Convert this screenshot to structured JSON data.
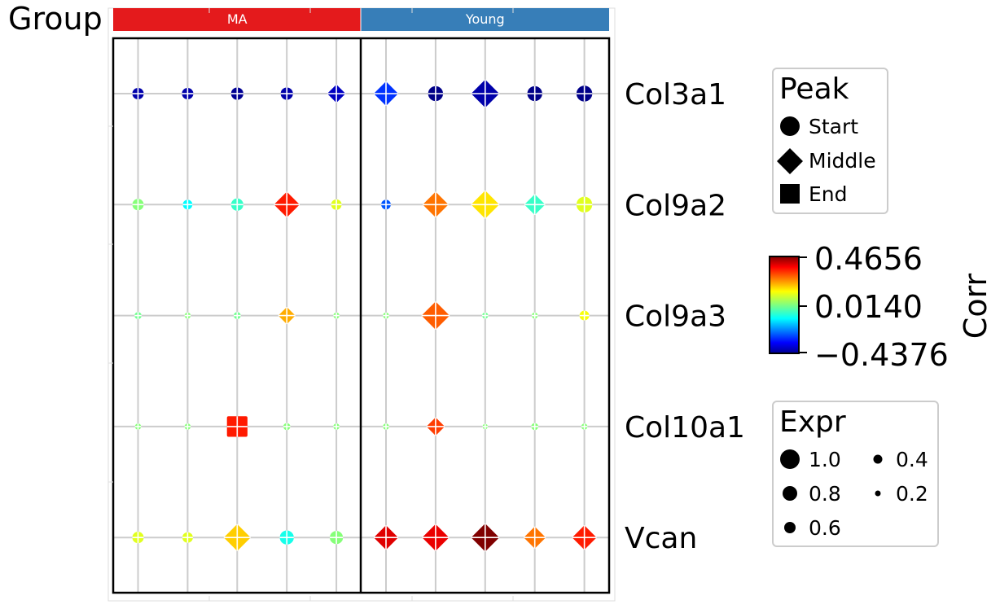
{
  "chart_data": {
    "type": "scatter",
    "subtype": "dot-plot",
    "group_axis_label": "Group",
    "groups": [
      {
        "name": "MA",
        "color": "#e41a1c",
        "columns": 5
      },
      {
        "name": "Young",
        "color": "#377eb8",
        "columns": 5
      }
    ],
    "genes": [
      "Col3a1",
      "Col9a2",
      "Col9a3",
      "Col10a1",
      "Vcan"
    ],
    "points": [
      {
        "gene": "Col3a1",
        "col": 1,
        "shape": "circle",
        "expr": 0.45,
        "corr": -0.4
      },
      {
        "gene": "Col3a1",
        "col": 2,
        "shape": "circle",
        "expr": 0.45,
        "corr": -0.4
      },
      {
        "gene": "Col3a1",
        "col": 3,
        "shape": "circle",
        "expr": 0.5,
        "corr": -0.42
      },
      {
        "gene": "Col3a1",
        "col": 4,
        "shape": "circle",
        "expr": 0.5,
        "corr": -0.4
      },
      {
        "gene": "Col3a1",
        "col": 5,
        "shape": "diamond",
        "expr": 0.55,
        "corr": -0.38
      },
      {
        "gene": "Col3a1",
        "col": 6,
        "shape": "diamond",
        "expr": 0.8,
        "corr": -0.28
      },
      {
        "gene": "Col3a1",
        "col": 7,
        "shape": "circle",
        "expr": 0.65,
        "corr": -0.43
      },
      {
        "gene": "Col3a1",
        "col": 8,
        "shape": "diamond",
        "expr": 0.95,
        "corr": -0.4
      },
      {
        "gene": "Col3a1",
        "col": 9,
        "shape": "circle",
        "expr": 0.65,
        "corr": -0.43
      },
      {
        "gene": "Col3a1",
        "col": 10,
        "shape": "circle",
        "expr": 0.7,
        "corr": -0.43
      },
      {
        "gene": "Col9a2",
        "col": 1,
        "shape": "circle",
        "expr": 0.45,
        "corr": 0.02
      },
      {
        "gene": "Col9a2",
        "col": 2,
        "shape": "circle",
        "expr": 0.35,
        "corr": -0.1
      },
      {
        "gene": "Col9a2",
        "col": 3,
        "shape": "circle",
        "expr": 0.5,
        "corr": -0.05
      },
      {
        "gene": "Col9a2",
        "col": 4,
        "shape": "diamond",
        "expr": 0.85,
        "corr": 0.33
      },
      {
        "gene": "Col9a2",
        "col": 5,
        "shape": "circle",
        "expr": 0.4,
        "corr": 0.1
      },
      {
        "gene": "Col9a2",
        "col": 6,
        "shape": "circle",
        "expr": 0.35,
        "corr": -0.25
      },
      {
        "gene": "Col9a2",
        "col": 7,
        "shape": "diamond",
        "expr": 0.85,
        "corr": 0.25
      },
      {
        "gene": "Col9a2",
        "col": 8,
        "shape": "diamond",
        "expr": 0.95,
        "corr": 0.15
      },
      {
        "gene": "Col9a2",
        "col": 9,
        "shape": "diamond",
        "expr": 0.65,
        "corr": -0.05
      },
      {
        "gene": "Col9a2",
        "col": 10,
        "shape": "circle",
        "expr": 0.7,
        "corr": 0.1
      },
      {
        "gene": "Col9a3",
        "col": 1,
        "shape": "circle",
        "expr": 0.2,
        "corr": 0.0
      },
      {
        "gene": "Col9a3",
        "col": 2,
        "shape": "circle",
        "expr": 0.15,
        "corr": 0.02
      },
      {
        "gene": "Col9a3",
        "col": 3,
        "shape": "circle",
        "expr": 0.2,
        "corr": 0.0
      },
      {
        "gene": "Col9a3",
        "col": 4,
        "shape": "diamond",
        "expr": 0.5,
        "corr": 0.2
      },
      {
        "gene": "Col9a3",
        "col": 5,
        "shape": "circle",
        "expr": 0.15,
        "corr": 0.02
      },
      {
        "gene": "Col9a3",
        "col": 6,
        "shape": "circle",
        "expr": 0.15,
        "corr": 0.02
      },
      {
        "gene": "Col9a3",
        "col": 7,
        "shape": "diamond",
        "expr": 0.95,
        "corr": 0.27
      },
      {
        "gene": "Col9a3",
        "col": 8,
        "shape": "circle",
        "expr": 0.15,
        "corr": 0.0
      },
      {
        "gene": "Col9a3",
        "col": 9,
        "shape": "circle",
        "expr": 0.15,
        "corr": 0.02
      },
      {
        "gene": "Col9a3",
        "col": 10,
        "shape": "circle",
        "expr": 0.35,
        "corr": 0.12
      },
      {
        "gene": "Col10a1",
        "col": 1,
        "shape": "circle",
        "expr": 0.15,
        "corr": 0.02
      },
      {
        "gene": "Col10a1",
        "col": 2,
        "shape": "circle",
        "expr": 0.15,
        "corr": 0.02
      },
      {
        "gene": "Col10a1",
        "col": 3,
        "shape": "square",
        "expr": 0.85,
        "corr": 0.33
      },
      {
        "gene": "Col10a1",
        "col": 4,
        "shape": "circle",
        "expr": 0.2,
        "corr": 0.02
      },
      {
        "gene": "Col10a1",
        "col": 5,
        "shape": "circle",
        "expr": 0.15,
        "corr": 0.02
      },
      {
        "gene": "Col10a1",
        "col": 6,
        "shape": "circle",
        "expr": 0.15,
        "corr": 0.02
      },
      {
        "gene": "Col10a1",
        "col": 7,
        "shape": "diamond",
        "expr": 0.55,
        "corr": 0.3
      },
      {
        "gene": "Col10a1",
        "col": 8,
        "shape": "circle",
        "expr": 0.1,
        "corr": 0.02
      },
      {
        "gene": "Col10a1",
        "col": 9,
        "shape": "circle",
        "expr": 0.2,
        "corr": 0.02
      },
      {
        "gene": "Col10a1",
        "col": 10,
        "shape": "circle",
        "expr": 0.15,
        "corr": 0.02
      }
    ],
    "points_vcan": [
      {
        "gene": "Vcan",
        "col": 1,
        "shape": "circle",
        "expr": 0.45,
        "corr": 0.1
      },
      {
        "gene": "Vcan",
        "col": 2,
        "shape": "circle",
        "expr": 0.4,
        "corr": 0.1
      },
      {
        "gene": "Vcan",
        "col": 3,
        "shape": "diamond",
        "expr": 0.9,
        "corr": 0.17
      },
      {
        "gene": "Vcan",
        "col": 4,
        "shape": "circle",
        "expr": 0.6,
        "corr": -0.08
      },
      {
        "gene": "Vcan",
        "col": 5,
        "shape": "circle",
        "expr": 0.55,
        "corr": 0.02
      },
      {
        "gene": "Vcan",
        "col": 6,
        "shape": "diamond",
        "expr": 0.8,
        "corr": 0.38
      },
      {
        "gene": "Vcan",
        "col": 7,
        "shape": "diamond",
        "expr": 0.9,
        "corr": 0.37
      },
      {
        "gene": "Vcan",
        "col": 8,
        "shape": "diamond",
        "expr": 0.95,
        "corr": 0.4656
      },
      {
        "gene": "Vcan",
        "col": 9,
        "shape": "diamond",
        "expr": 0.7,
        "corr": 0.25
      },
      {
        "gene": "Vcan",
        "col": 10,
        "shape": "diamond",
        "expr": 0.8,
        "corr": 0.33
      }
    ],
    "legend_peak": {
      "title": "Peak",
      "items": [
        {
          "label": "Start",
          "shape": "circle"
        },
        {
          "label": "Middle",
          "shape": "diamond"
        },
        {
          "label": "End",
          "shape": "square"
        }
      ]
    },
    "colorbar": {
      "title": "Corr",
      "colormap": "jet",
      "min": -0.4376,
      "mid": 0.014,
      "max": 0.4656,
      "tick_labels": [
        "0.4656",
        "0.0140",
        "−0.4376"
      ]
    },
    "legend_expr": {
      "title": "Expr",
      "items": [
        {
          "label": "1.0",
          "value": 1.0
        },
        {
          "label": "0.8",
          "value": 0.8
        },
        {
          "label": "0.6",
          "value": 0.6
        },
        {
          "label": "0.4",
          "value": 0.4
        },
        {
          "label": "0.2",
          "value": 0.2
        }
      ]
    },
    "grid": true,
    "legend_placement": "right"
  }
}
